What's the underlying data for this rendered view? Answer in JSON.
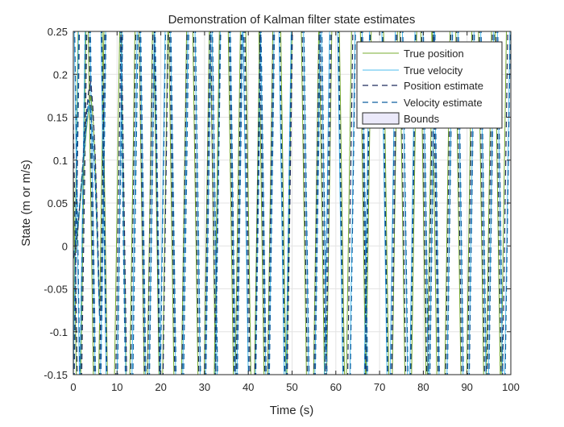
{
  "chart_data": {
    "type": "line",
    "title": "Demonstration of Kalman filter state estimates",
    "xlabel": "Time (s)",
    "ylabel": "State (m or m/s)",
    "xlim": [
      0,
      100
    ],
    "ylim": [
      -0.15,
      0.25
    ],
    "xticks": [
      0,
      10,
      20,
      30,
      40,
      50,
      60,
      70,
      80,
      90,
      100
    ],
    "yticks": [
      -0.15,
      -0.1,
      -0.05,
      0,
      0.05,
      0.1,
      0.15,
      0.2,
      0.25
    ],
    "xtick_labels": [
      "0",
      "10",
      "20",
      "30",
      "40",
      "50",
      "60",
      "70",
      "80",
      "90",
      "100"
    ],
    "ytick_labels": [
      "-0.15",
      "-0.1",
      "-0.05",
      "0",
      "0.05",
      "0.1",
      "0.15",
      "0.2",
      "0.25"
    ],
    "grid": true,
    "legend_position": "top-right",
    "legend": [
      "True position",
      "True velocity",
      "Position estimate",
      "Velocity estimate",
      "Bounds"
    ],
    "crossings": [
      {
        "x": [
          0.5,
          0.1,
          2.3,
          4.0,
          6.4,
          7.2,
          10.0,
          11.5,
          13.5,
          15.6,
          17.5,
          19.0,
          21.0,
          22.4,
          25.3,
          27.9,
          30.5,
          31.9,
          32.8,
          36.0,
          37.6,
          40.0,
          42.0,
          43.0,
          45.0,
          48.0,
          49.4,
          52.7,
          55.5,
          56.8,
          58.5,
          61.4,
          63.0,
          66.2,
          67.5,
          71.5,
          73.5,
          75.2,
          77.9,
          80.0,
          81.5,
          82.5,
          85.5,
          88.0,
          90.5,
          93.2,
          95.0,
          97.0,
          98.4
        ]
      },
      {
        "x": [
          0.6,
          0.8,
          2.1,
          4.4,
          6.8,
          6.9,
          10.6,
          11.4,
          14.0,
          15.9,
          17.9,
          19.2,
          20.4,
          22.8,
          25.6,
          28.4,
          30.8,
          32.3,
          33.0,
          36.4,
          38.0,
          39.4,
          42.2,
          43.4,
          45.3,
          47.6,
          49.2,
          53.2,
          55.8,
          57.3,
          58.0,
          61.0,
          63.8,
          66.6,
          67.1,
          71.1,
          73.0,
          75.8,
          77.5,
          80.5,
          82.0,
          83.0,
          86.0,
          88.5,
          91.0,
          93.7,
          95.5,
          97.5,
          99.2
        ]
      },
      {
        "x": [
          0.8,
          0.3,
          2.5,
          4.2,
          6.6,
          7.1,
          10.3,
          11.6,
          13.7,
          15.7,
          17.6,
          19.1,
          21.1,
          22.6,
          25.4,
          28.1,
          30.6,
          32.0,
          33.0,
          36.2,
          37.8,
          39.8,
          42.1,
          43.2,
          45.1,
          47.8,
          49.5,
          52.9,
          55.6,
          57.0,
          58.4,
          61.2,
          63.3,
          66.4,
          67.3,
          71.3,
          73.4,
          75.4,
          77.7,
          80.2,
          81.7,
          82.8,
          85.7,
          88.2,
          90.7,
          93.4,
          95.2,
          97.2,
          98.7
        ]
      },
      {
        "x": [
          0.7,
          0.9,
          2.2,
          4.5,
          6.9,
          7.0,
          10.7,
          11.3,
          14.2,
          16.0,
          18.0,
          19.3,
          20.5,
          22.9,
          25.8,
          28.5,
          30.9,
          32.4,
          33.1,
          36.5,
          38.1,
          39.5,
          42.3,
          43.5,
          45.4,
          47.7,
          49.3,
          53.3,
          55.9,
          57.4,
          58.1,
          61.1,
          63.9,
          66.7,
          67.2,
          71.2,
          73.1,
          75.9,
          77.6,
          80.6,
          82.1,
          83.1,
          86.1,
          88.6,
          91.1,
          93.8,
          95.6,
          97.6,
          99.3
        ]
      }
    ],
    "series": [
      {
        "name": "True position",
        "style": "solid",
        "color": "#77ac30",
        "x": [
          0,
          0.5,
          1,
          1.5,
          2,
          2.5,
          3,
          3.5,
          4,
          4.5,
          5,
          5.5,
          6
        ],
        "values": [
          -0.014,
          -0.005,
          0.015,
          0.045,
          0.075,
          0.105,
          0.135,
          0.16,
          0.175,
          0.15,
          0.1,
          0.02,
          -0.08
        ]
      },
      {
        "name": "True velocity",
        "style": "solid",
        "color": "#4dbeee",
        "x": [
          0,
          0.5,
          1,
          1.5,
          2,
          2.5,
          3,
          3.5,
          4,
          4.5,
          5,
          5.5,
          6
        ],
        "values": [
          -0.012,
          0.0,
          0.02,
          0.05,
          0.08,
          0.11,
          0.14,
          0.165,
          0.15,
          0.12,
          0.07,
          0.0,
          -0.09
        ]
      },
      {
        "name": "Position estimate",
        "style": "dashed",
        "color": "#1f2a5c",
        "x": [
          0,
          0.5,
          1,
          1.5,
          2,
          2.5,
          3,
          3.5,
          4,
          4.5,
          5,
          5.5,
          6
        ],
        "values": [
          -0.015,
          -0.003,
          0.018,
          0.05,
          0.085,
          0.12,
          0.155,
          0.18,
          0.192,
          0.16,
          0.105,
          0.025,
          -0.075
        ]
      },
      {
        "name": "Velocity estimate",
        "style": "dashed",
        "color": "#0d5fa0",
        "x": [
          0,
          0.5,
          1,
          1.5,
          2,
          2.5,
          3,
          3.5,
          4,
          4.5,
          5,
          5.5,
          6
        ],
        "values": [
          -0.012,
          0.002,
          0.022,
          0.05,
          0.082,
          0.115,
          0.145,
          0.17,
          0.155,
          0.125,
          0.075,
          0.005,
          -0.085
        ]
      },
      {
        "name": "Bounds",
        "style": "fill",
        "color": "#ebe9fa"
      }
    ]
  }
}
